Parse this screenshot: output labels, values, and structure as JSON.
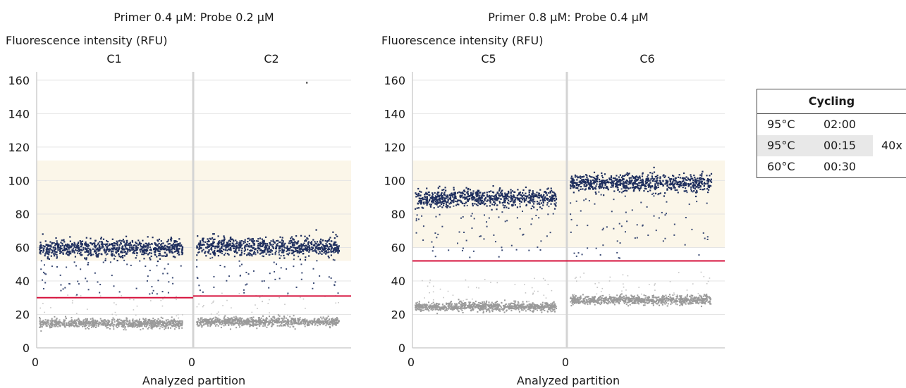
{
  "panels": [
    {
      "title": "Primer 0.4 μM: Probe 0.2 μM",
      "ylabel": "Fluorescence intensity (RFU)",
      "xlabel": "Analyzed partition"
    },
    {
      "title": "Primer 0.8 μM: Probe 0.4 μM",
      "ylabel": "Fluorescence intensity (RFU)",
      "xlabel": "Analyzed partition"
    }
  ],
  "cycling_table": {
    "header": "Cycling",
    "rows": [
      {
        "temp": "95°C",
        "time": "02:00",
        "repeat": ""
      },
      {
        "temp": "95°C",
        "time": "00:15",
        "repeat": "40x"
      },
      {
        "temp": "60°C",
        "time": "00:30",
        "repeat": ""
      }
    ]
  },
  "colors": {
    "positive": "#1f2f5e",
    "negative": "#9a9a9a",
    "threshold": "#d6123c",
    "band": "#fbf6e9"
  },
  "chart_data": [
    {
      "type": "scatter",
      "title": "Primer 0.4 μM: Probe 0.2 μM",
      "xlabel": "Analyzed partition",
      "ylabel": "Fluorescence intensity (RFU)",
      "ylim": [
        0,
        165
      ],
      "yticks": [
        0,
        20,
        40,
        60,
        80,
        100,
        120,
        140,
        160
      ],
      "grid": true,
      "band": [
        52,
        112
      ],
      "wells": [
        {
          "name": "C1",
          "x_start_label": "0",
          "positive_mean": 60,
          "negative_mean": 15,
          "threshold": 30
        },
        {
          "name": "C2",
          "x_start_label": "0",
          "positive_mean": 61,
          "negative_mean": 16,
          "threshold": 31,
          "outlier": 159
        }
      ]
    },
    {
      "type": "scatter",
      "title": "Primer 0.8 μM: Probe 0.4 μM",
      "xlabel": "Analyzed partition",
      "ylabel": "Fluorescence intensity (RFU)",
      "ylim": [
        0,
        165
      ],
      "yticks": [
        0,
        20,
        40,
        60,
        80,
        100,
        120,
        140,
        160
      ],
      "grid": true,
      "band": [
        60,
        112
      ],
      "wells": [
        {
          "name": "C5",
          "x_start_label": "0",
          "positive_mean": 90,
          "negative_mean": 25,
          "threshold": 52
        },
        {
          "name": "C6",
          "x_start_label": "0",
          "positive_mean": 99,
          "negative_mean": 29,
          "threshold": 52
        }
      ]
    }
  ]
}
